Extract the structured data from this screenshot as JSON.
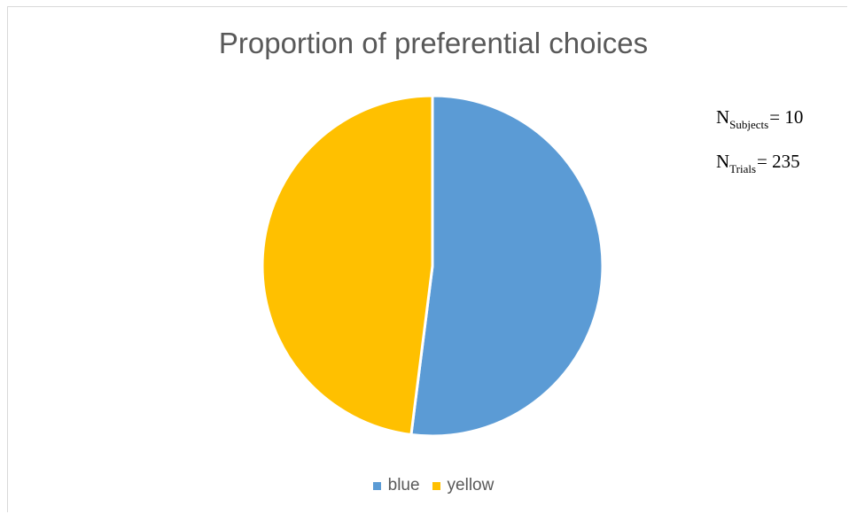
{
  "chart_data": {
    "type": "pie",
    "title": "Proportion of preferential choices",
    "categories": [
      "blue",
      "yellow"
    ],
    "values": [
      52,
      48
    ],
    "colors": [
      "#5b9bd5",
      "#ffc000"
    ],
    "legend_position": "bottom",
    "annotations": [
      {
        "symbol": "N",
        "subscript": "Subjects",
        "text": "= 10"
      },
      {
        "symbol": "N",
        "subscript": "Trials",
        "text": "= 235"
      }
    ]
  }
}
